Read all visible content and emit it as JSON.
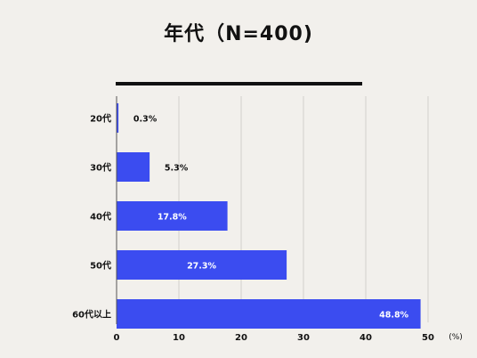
{
  "chart_data": {
    "type": "bar",
    "orientation": "horizontal",
    "title": "年代（N=400)",
    "categories": [
      "20代",
      "30代",
      "40代",
      "50代",
      "60代以上"
    ],
    "values": [
      0.3,
      5.3,
      17.8,
      27.3,
      48.8
    ],
    "data_labels": [
      "0.3%",
      "5.3%",
      "17.8%",
      "27.3%",
      "48.8%"
    ],
    "x_ticks": [
      "0",
      "10",
      "20",
      "30",
      "40",
      "50"
    ],
    "xlim": [
      0,
      50
    ],
    "unit_label": "(%)",
    "grid": true,
    "colors": {
      "bar": "#3b4cf0",
      "grid": "#d2d0cc",
      "background": "#f2f0ec",
      "text": "#111111",
      "label_inside": "#ffffff"
    }
  }
}
